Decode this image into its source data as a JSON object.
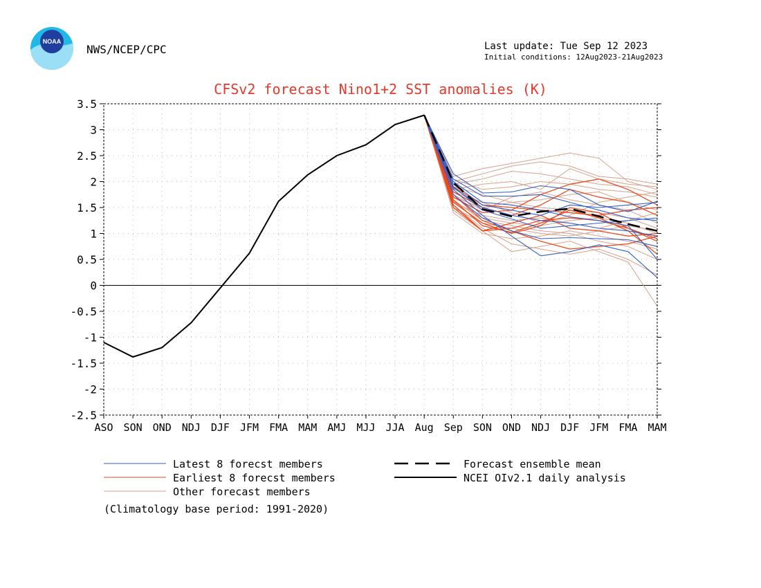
{
  "header": {
    "logo_text": "NOAA",
    "org": "NWS/NCEP/CPC",
    "last_update": "Last update: Tue Sep 12 2023",
    "initial_conditions": "Initial conditions: 12Aug2023-21Aug2023"
  },
  "colors": {
    "title": "#e8382a",
    "latest": "#2f5fc9",
    "earliest": "#e84a1e",
    "other": "#d9a08c",
    "observed": "#000000",
    "mean": "#000000",
    "logo_outer": "#1fb8e8",
    "logo_inner": "#1f3e9e"
  },
  "chart_data": {
    "type": "line",
    "title": "CFSv2 forecast Nino1+2 SST anomalies (K)",
    "categories": [
      "ASO",
      "SON",
      "OND",
      "NDJ",
      "DJF",
      "JFM",
      "FMA",
      "MAM",
      "AMJ",
      "MJJ",
      "JJA",
      "Aug",
      "Sep",
      "SON",
      "OND",
      "NDJ",
      "DJF",
      "JFM",
      "FMA",
      "MAM"
    ],
    "ylim": [
      -2.5,
      3.5
    ],
    "yticks": [
      3.5,
      3,
      2.5,
      2,
      1.5,
      1,
      0.5,
      0,
      -0.5,
      -1,
      -1.5,
      -2,
      -2.5
    ],
    "ytick_labels": [
      "3.5",
      "3",
      "2.5",
      "2",
      "1.5",
      "1",
      "0.5",
      "0",
      "-0.5",
      "-1",
      "-1.5",
      "-2",
      "-2.5"
    ],
    "grid": true,
    "observed": {
      "name": "NCEI OIv2.1 daily analysis",
      "values": [
        -1.1,
        -1.38,
        -1.2,
        -0.72,
        -0.05,
        0.62,
        1.62,
        2.13,
        2.5,
        2.71,
        3.1,
        3.28
      ]
    },
    "forecast_start_index": 11,
    "ensemble_mean": {
      "name": "Forecast ensemble mean",
      "values": [
        3.28,
        1.98,
        1.47,
        1.33,
        1.42,
        1.48,
        1.33,
        1.18,
        1.05
      ]
    },
    "latest_members": {
      "name": "Latest 8 forecst members",
      "values": [
        [
          3.28,
          2.15,
          1.78,
          1.8,
          1.92,
          1.85,
          1.55,
          1.42,
          1.62
        ],
        [
          3.28,
          2.05,
          1.72,
          1.72,
          1.75,
          1.6,
          1.45,
          1.3,
          1.25
        ],
        [
          3.28,
          1.95,
          1.55,
          1.45,
          1.35,
          1.55,
          1.5,
          1.55,
          1.6
        ],
        [
          3.28,
          1.9,
          1.45,
          1.28,
          1.1,
          1.15,
          1.2,
          1.25,
          1.3
        ],
        [
          3.28,
          1.75,
          1.3,
          1.05,
          0.9,
          0.92,
          0.9,
          0.88,
          0.75
        ],
        [
          3.28,
          1.85,
          1.35,
          0.95,
          0.57,
          0.65,
          0.78,
          0.65,
          0.15
        ],
        [
          3.28,
          2.0,
          1.6,
          1.55,
          1.45,
          1.32,
          1.25,
          1.15,
          0.5
        ],
        [
          3.28,
          1.88,
          1.5,
          1.35,
          1.25,
          1.2,
          1.1,
          1.05,
          0.95
        ]
      ]
    },
    "earliest_members": {
      "name": "Earliest 8 forecst members",
      "values": [
        [
          3.28,
          1.7,
          1.4,
          1.45,
          1.75,
          1.95,
          2.05,
          1.85,
          1.55
        ],
        [
          3.28,
          1.8,
          1.5,
          1.35,
          1.55,
          1.85,
          1.7,
          1.6,
          1.35
        ],
        [
          3.28,
          1.6,
          1.2,
          1.0,
          1.15,
          1.5,
          1.4,
          1.1,
          0.85
        ],
        [
          3.28,
          1.55,
          1.05,
          1.1,
          1.25,
          1.3,
          1.25,
          1.1,
          0.9
        ],
        [
          3.28,
          1.75,
          1.25,
          1.05,
          0.85,
          0.7,
          0.75,
          0.8,
          0.95
        ],
        [
          3.28,
          1.9,
          1.55,
          1.5,
          1.45,
          1.4,
          1.35,
          1.45,
          1.5
        ],
        [
          3.28,
          1.65,
          1.15,
          1.02,
          1.2,
          1.45,
          1.3,
          1.05,
          0.6
        ],
        [
          3.28,
          1.5,
          1.05,
          1.2,
          1.35,
          1.1,
          1.05,
          0.95,
          1.0
        ]
      ]
    },
    "other_members": {
      "name": "Other forecast members",
      "values": [
        [
          3.28,
          2.1,
          2.25,
          2.35,
          2.45,
          2.55,
          2.45,
          2.0,
          1.85
        ],
        [
          3.28,
          2.0,
          2.15,
          2.3,
          2.38,
          2.3,
          2.1,
          2.05,
          1.95
        ],
        [
          3.28,
          1.95,
          2.05,
          2.2,
          2.15,
          2.05,
          1.95,
          1.9,
          1.75
        ],
        [
          3.28,
          1.85,
          1.95,
          2.0,
          1.85,
          2.25,
          2.05,
          1.95,
          1.9
        ],
        [
          3.28,
          1.45,
          1.05,
          0.65,
          0.75,
          0.85,
          0.65,
          0.45,
          -0.4
        ],
        [
          3.28,
          1.55,
          1.1,
          0.8,
          0.7,
          0.6,
          0.7,
          0.5,
          0.2
        ],
        [
          3.28,
          1.65,
          1.25,
          1.15,
          1.05,
          1.0,
          0.85,
          0.75,
          0.5
        ],
        [
          3.28,
          1.75,
          1.45,
          1.7,
          1.8,
          1.65,
          1.55,
          1.45,
          1.2
        ],
        [
          3.28,
          1.6,
          1.35,
          1.25,
          1.3,
          1.2,
          1.1,
          1.25,
          1.4
        ],
        [
          3.28,
          1.7,
          1.5,
          1.6,
          1.5,
          1.45,
          1.4,
          1.3,
          1.1
        ],
        [
          3.28,
          1.8,
          1.6,
          1.4,
          1.2,
          1.35,
          1.6,
          1.7,
          1.8
        ],
        [
          3.28,
          1.5,
          1.2,
          1.1,
          1.0,
          0.95,
          1.05,
          1.15,
          1.05
        ],
        [
          3.28,
          1.9,
          1.75,
          1.6,
          1.65,
          1.75,
          1.8,
          1.6,
          1.45
        ],
        [
          3.28,
          1.4,
          1.0,
          0.9,
          0.95,
          1.05,
          0.95,
          0.85,
          0.7
        ],
        [
          3.28,
          2.05,
          1.85,
          1.9,
          2.0,
          1.95,
          1.85,
          1.8,
          1.7
        ],
        [
          3.28,
          1.62,
          1.3,
          1.2,
          1.15,
          1.25,
          1.3,
          1.2,
          1.0
        ]
      ]
    },
    "zero_line": true
  },
  "legend": {
    "latest": "Latest 8 forecst members",
    "earliest": "Earliest 8 forecst members",
    "other": "Other forecast members",
    "mean": "Forecast ensemble mean",
    "observed": "NCEI OIv2.1 daily analysis",
    "note": "(Climatology base period: 1991-2020)"
  }
}
